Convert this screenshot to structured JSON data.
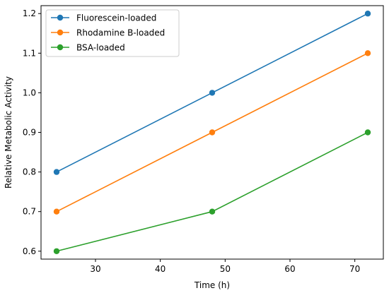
{
  "chart_data": {
    "type": "line",
    "title": "",
    "xlabel": "Time (h)",
    "ylabel": "Relative Metabolic Activity",
    "x": [
      24,
      48,
      72
    ],
    "xlim": [
      21.6,
      74.4
    ],
    "ylim": [
      0.58,
      1.22
    ],
    "xticks": [
      30,
      40,
      50,
      60,
      70
    ],
    "yticks": [
      0.6,
      0.7,
      0.8,
      0.9,
      1.0,
      1.1,
      1.2
    ],
    "xtick_labels": [
      "30",
      "40",
      "50",
      "60",
      "70"
    ],
    "ytick_labels": [
      "0.6",
      "0.7",
      "0.8",
      "0.9",
      "1.0",
      "1.1",
      "1.2"
    ],
    "grid": false,
    "legend_position": "top-left",
    "series": [
      {
        "name": "Fluorescein-loaded",
        "color": "#1f77b4",
        "values": [
          0.8,
          1.0,
          1.2
        ]
      },
      {
        "name": "Rhodamine B-loaded",
        "color": "#ff7f0e",
        "values": [
          0.7,
          0.9,
          1.1
        ]
      },
      {
        "name": "BSA-loaded",
        "color": "#2ca02c",
        "values": [
          0.6,
          0.7,
          0.9
        ]
      }
    ]
  }
}
